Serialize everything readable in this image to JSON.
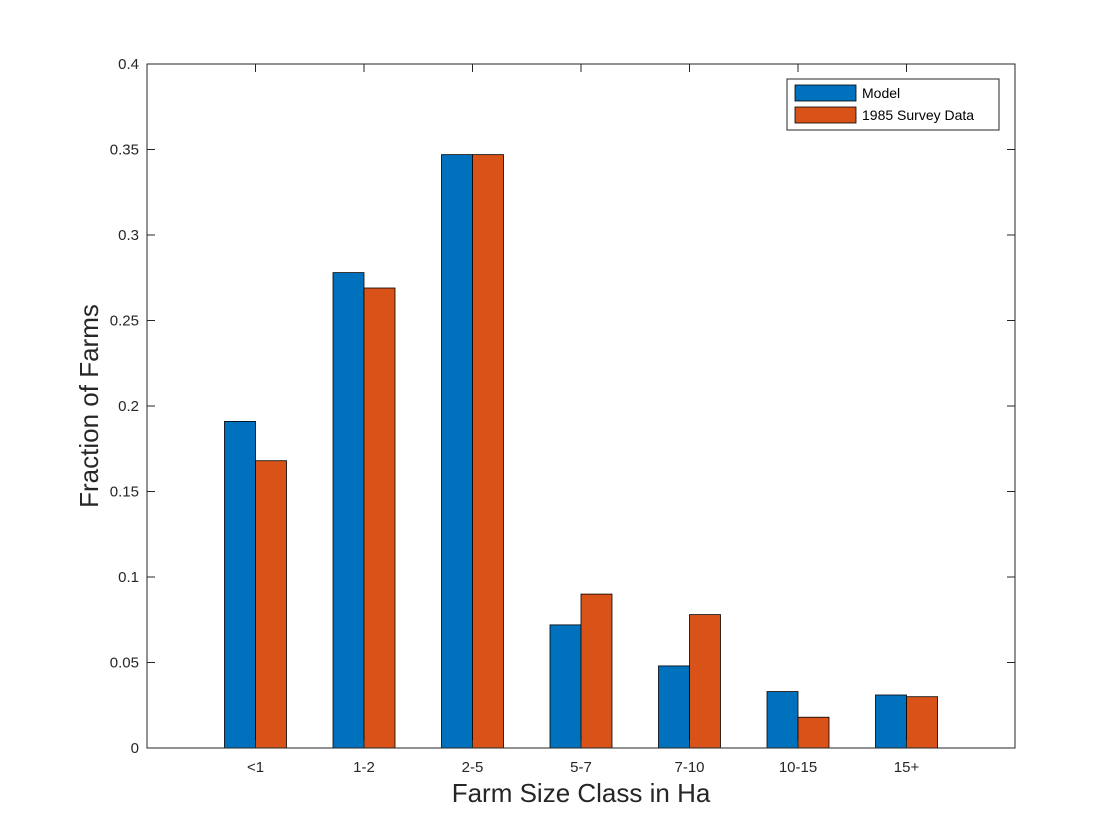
{
  "chart_data": {
    "type": "bar",
    "categories": [
      "<1",
      "1-2",
      "2-5",
      "5-7",
      "7-10",
      "10-15",
      "15+"
    ],
    "series": [
      {
        "name": "Model",
        "color": "#0072BD",
        "values": [
          0.191,
          0.278,
          0.347,
          0.072,
          0.048,
          0.033,
          0.031
        ]
      },
      {
        "name": "1985 Survey Data",
        "color": "#D95319",
        "values": [
          0.168,
          0.269,
          0.347,
          0.09,
          0.078,
          0.018,
          0.03
        ]
      }
    ],
    "title": "",
    "xlabel": "Farm Size Class in Ha",
    "ylabel": "Fraction of Farms",
    "ylim": [
      0,
      0.4
    ],
    "yticks": [
      0,
      0.05,
      0.1,
      0.15,
      0.2,
      0.25,
      0.3,
      0.35,
      0.4
    ],
    "ytick_labels": [
      "0",
      "0.05",
      "0.1",
      "0.15",
      "0.2",
      "0.25",
      "0.3",
      "0.35",
      "0.4"
    ],
    "grid": false,
    "legend_position": "top-right"
  }
}
